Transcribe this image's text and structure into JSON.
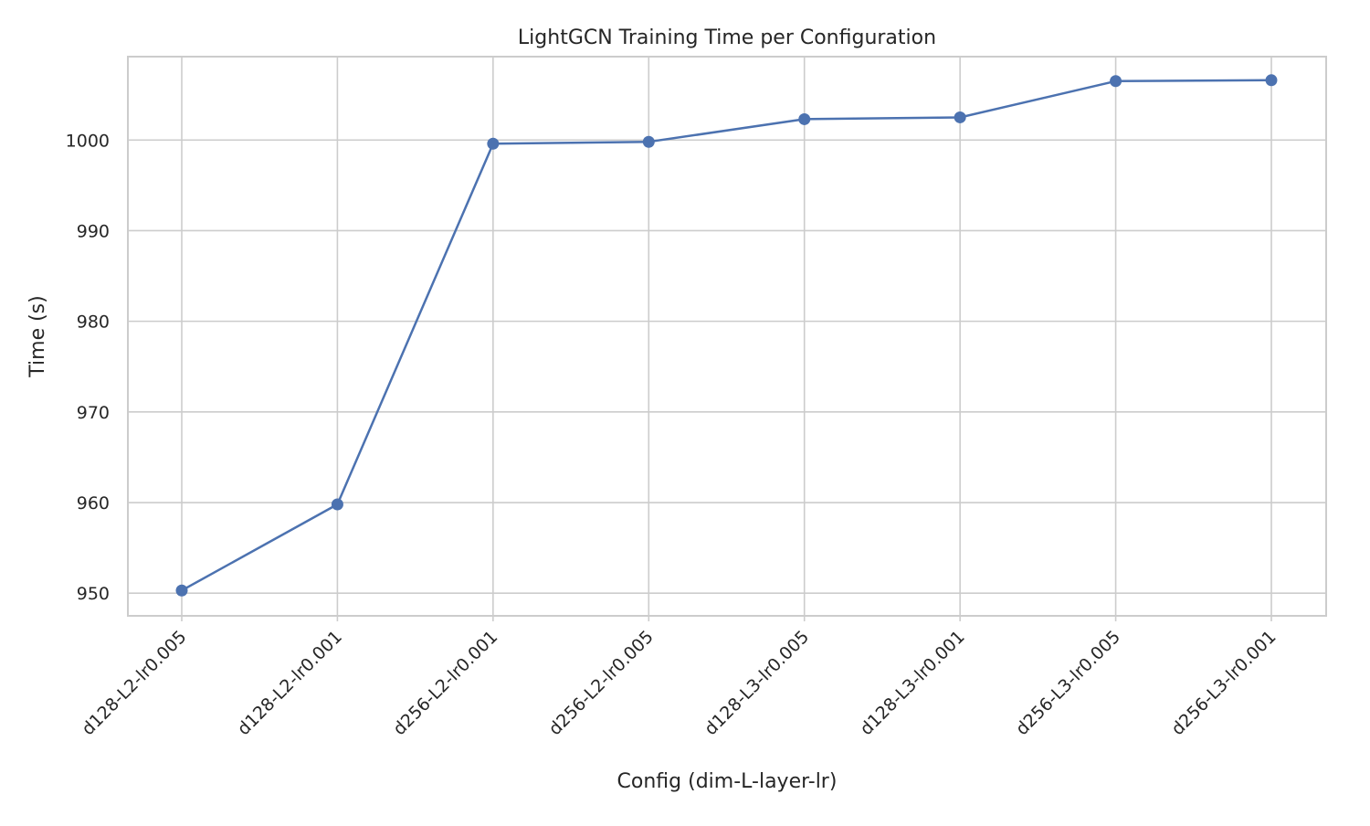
{
  "chart_data": {
    "type": "line",
    "title": "LightGCN Training Time per Configuration",
    "xlabel": "Config (dim-L-layer-lr)",
    "ylabel": "Time (s)",
    "categories": [
      "d128-L2-lr0.005",
      "d128-L2-lr0.001",
      "d256-L2-lr0.001",
      "d256-L2-lr0.005",
      "d128-L3-lr0.005",
      "d128-L3-lr0.001",
      "d256-L3-lr0.005",
      "d256-L3-lr0.001"
    ],
    "values": [
      950.3,
      959.8,
      999.6,
      999.8,
      1002.3,
      1002.5,
      1006.5,
      1006.6
    ],
    "ylim": [
      947.5,
      1009.2
    ],
    "yticks": [
      950,
      960,
      970,
      980,
      990,
      1000
    ],
    "grid": true,
    "line_color": "#4c72b0",
    "grid_color": "#cccccc",
    "axis_color": "#cccccc",
    "x_tick_rotation": "45deg"
  }
}
